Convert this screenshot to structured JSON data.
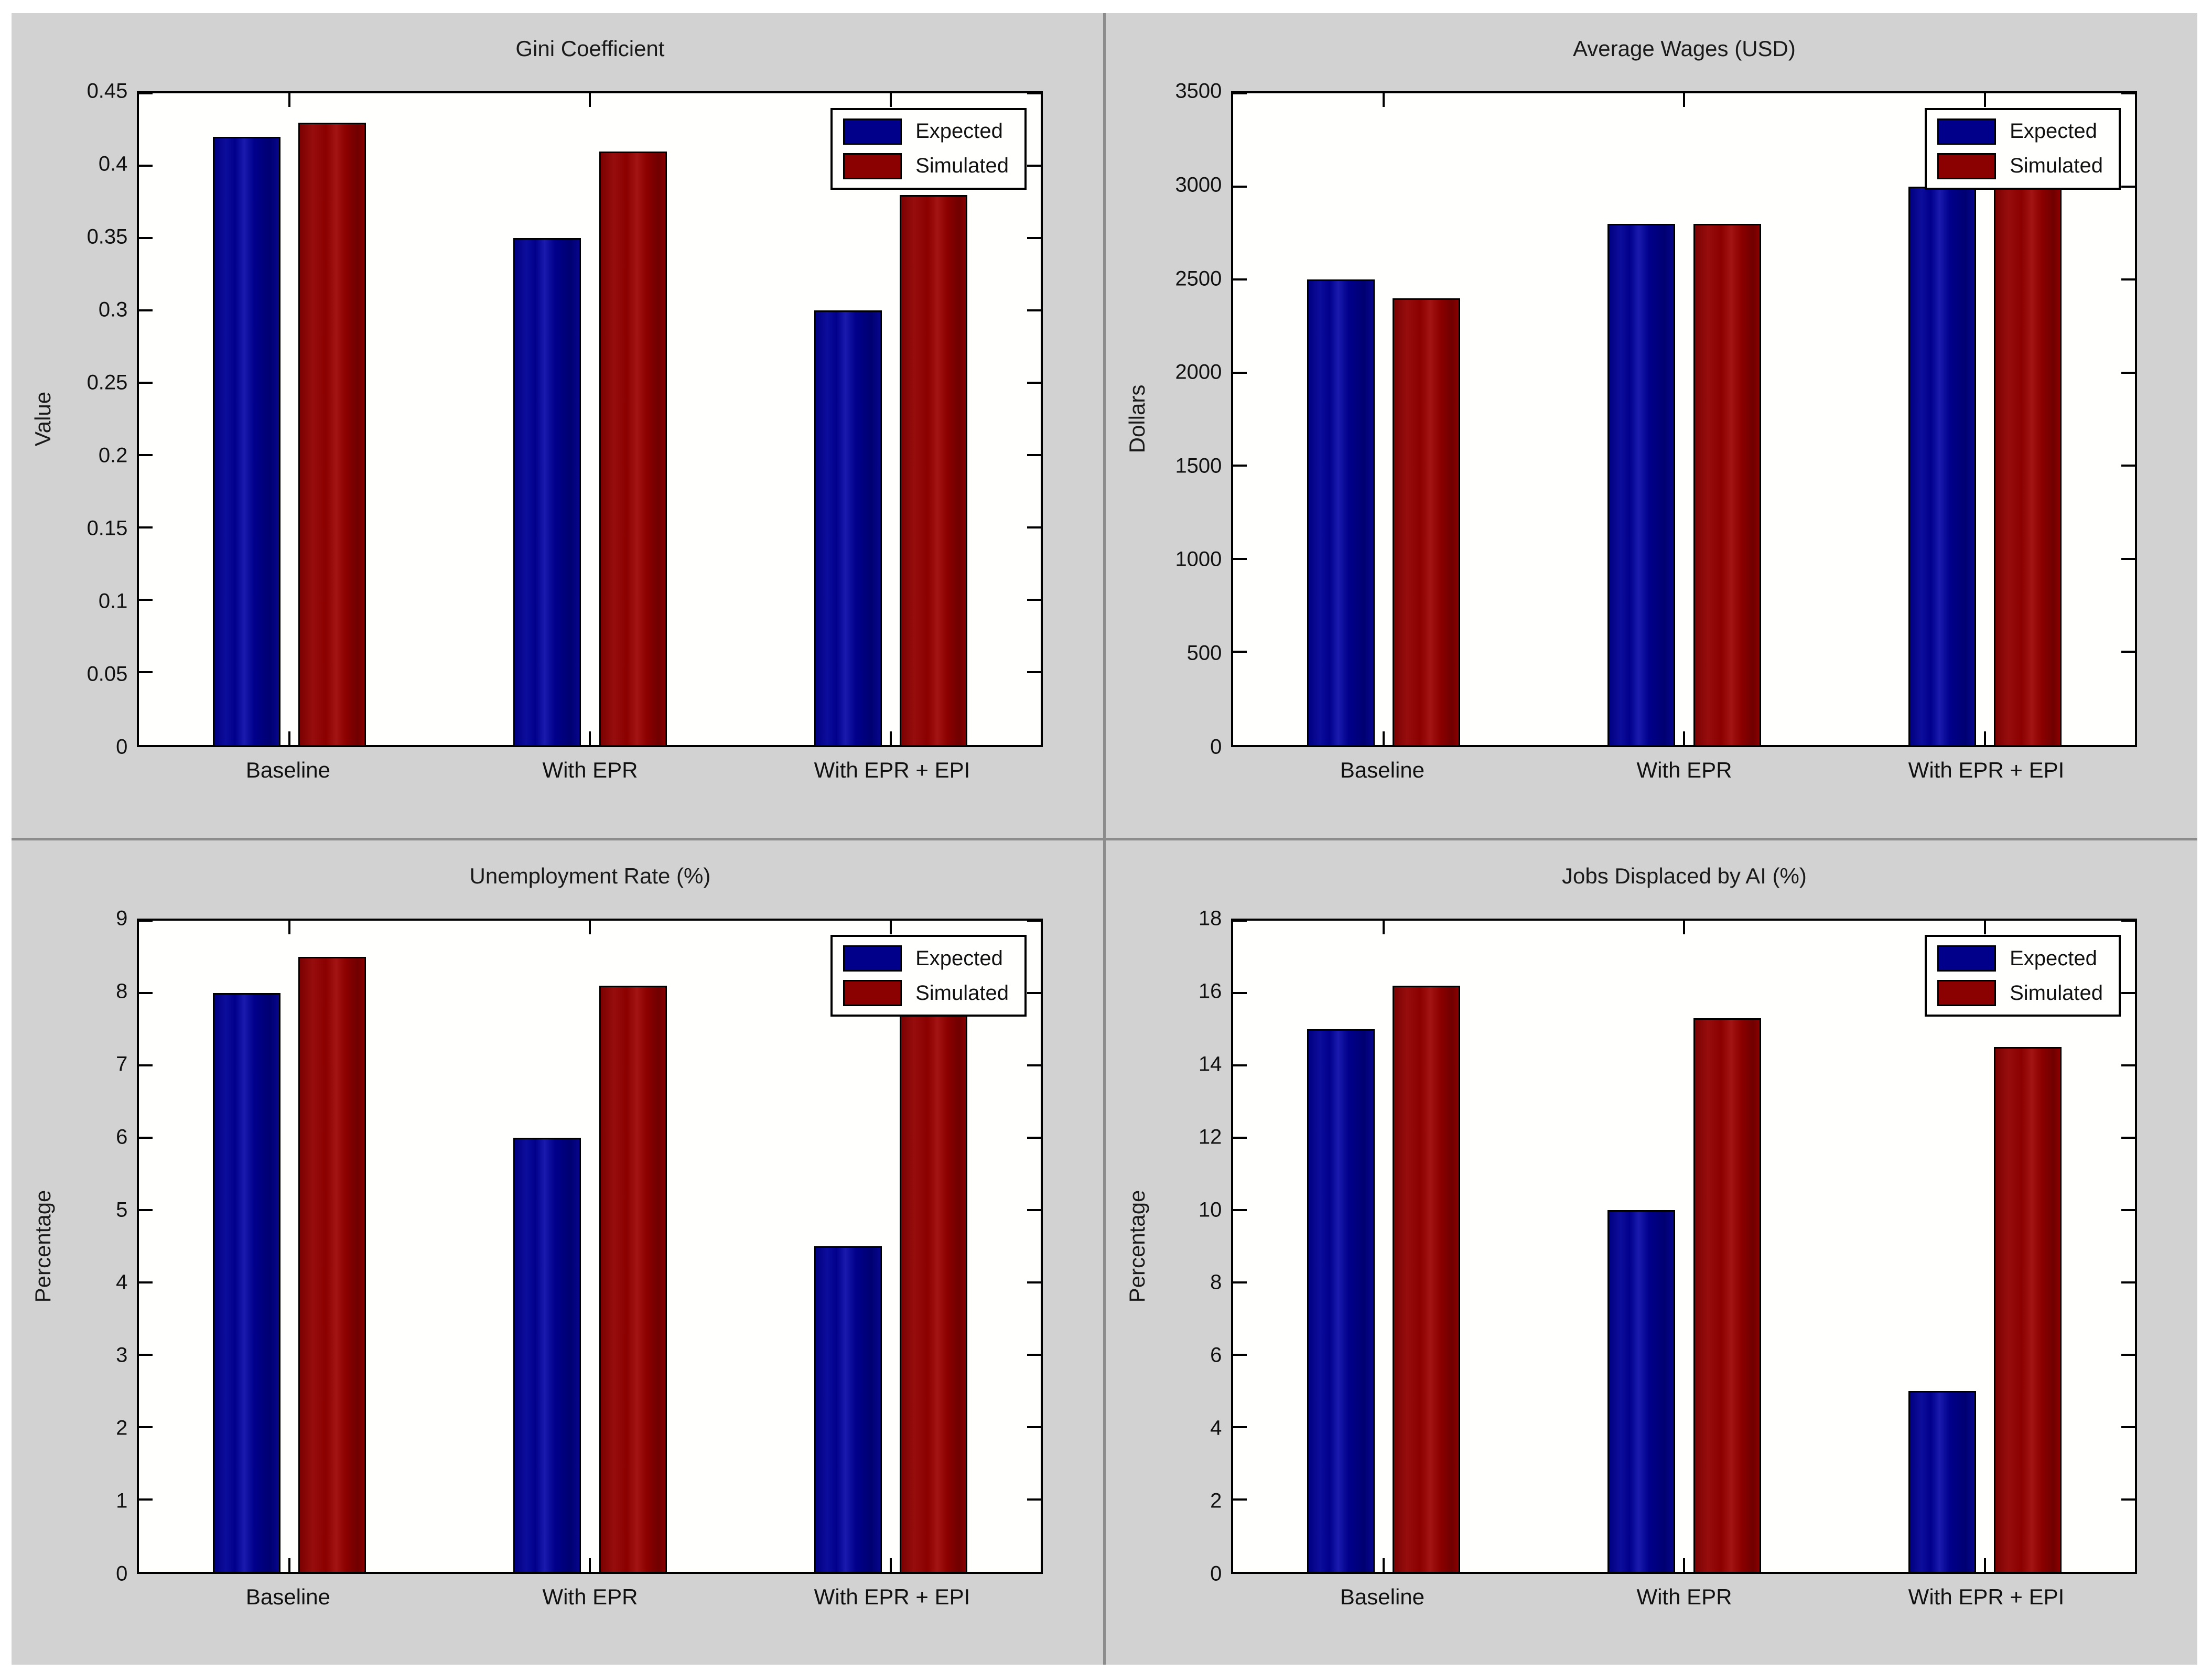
{
  "figure": {
    "background_color": "#ffffff",
    "panel_background_color": "#d2d2d2",
    "plot_background_color": "#fffffd",
    "axis_color": "#000000",
    "expected_color": "#00008b",
    "simulated_color": "#8b0000"
  },
  "legend": {
    "position": "top-right",
    "items": [
      {
        "label": "Expected",
        "color": "#00008b"
      },
      {
        "label": "Simulated",
        "color": "#8b0000"
      }
    ]
  },
  "chart_data": [
    {
      "type": "bar",
      "title": "Gini Coefficient",
      "xlabel": "",
      "ylabel": "Value",
      "ylim": [
        0,
        0.45
      ],
      "ytick_step": 0.05,
      "ytick_labels": [
        "0",
        "0.05",
        "0.1",
        "0.15",
        "0.2",
        "0.25",
        "0.3",
        "0.35",
        "0.4",
        "0.45"
      ],
      "categories": [
        "Baseline",
        "With EPR",
        "With EPR + EPI"
      ],
      "series": [
        {
          "name": "Expected",
          "color": "#00008b",
          "values": [
            0.42,
            0.35,
            0.3
          ]
        },
        {
          "name": "Simulated",
          "color": "#8b0000",
          "values": [
            0.43,
            0.41,
            0.38
          ]
        }
      ],
      "grid": false,
      "legend_position": "top-right"
    },
    {
      "type": "bar",
      "title": "Average Wages (USD)",
      "xlabel": "",
      "ylabel": "Dollars",
      "ylim": [
        0,
        3500
      ],
      "ytick_step": 500,
      "ytick_labels": [
        "0",
        "500",
        "1000",
        "1500",
        "2000",
        "2500",
        "3000",
        "3500"
      ],
      "categories": [
        "Baseline",
        "With EPR",
        "With EPR + EPI"
      ],
      "series": [
        {
          "name": "Expected",
          "color": "#00008b",
          "values": [
            2500,
            2800,
            3000
          ]
        },
        {
          "name": "Simulated",
          "color": "#8b0000",
          "values": [
            2400,
            2800,
            3000
          ]
        }
      ],
      "grid": false,
      "legend_position": "top-right"
    },
    {
      "type": "bar",
      "title": "Unemployment Rate (%)",
      "xlabel": "",
      "ylabel": "Percentage",
      "ylim": [
        0,
        9
      ],
      "ytick_step": 1,
      "ytick_labels": [
        "0",
        "1",
        "2",
        "3",
        "4",
        "5",
        "6",
        "7",
        "8",
        "9"
      ],
      "categories": [
        "Baseline",
        "With EPR",
        "With EPR + EPI"
      ],
      "series": [
        {
          "name": "Expected",
          "color": "#00008b",
          "values": [
            8.0,
            6.0,
            4.5
          ]
        },
        {
          "name": "Simulated",
          "color": "#8b0000",
          "values": [
            8.5,
            8.1,
            7.7
          ]
        }
      ],
      "grid": false,
      "legend_position": "top-right"
    },
    {
      "type": "bar",
      "title": "Jobs Displaced by AI (%)",
      "xlabel": "",
      "ylabel": "Percentage",
      "ylim": [
        0,
        18
      ],
      "ytick_step": 2,
      "ytick_labels": [
        "0",
        "2",
        "4",
        "6",
        "8",
        "10",
        "12",
        "14",
        "16",
        "18"
      ],
      "categories": [
        "Baseline",
        "With EPR",
        "With EPR + EPI"
      ],
      "series": [
        {
          "name": "Expected",
          "color": "#00008b",
          "values": [
            15.0,
            10.0,
            5.0
          ]
        },
        {
          "name": "Simulated",
          "color": "#8b0000",
          "values": [
            16.2,
            15.3,
            14.5
          ]
        }
      ],
      "grid": false,
      "legend_position": "top-right"
    }
  ]
}
